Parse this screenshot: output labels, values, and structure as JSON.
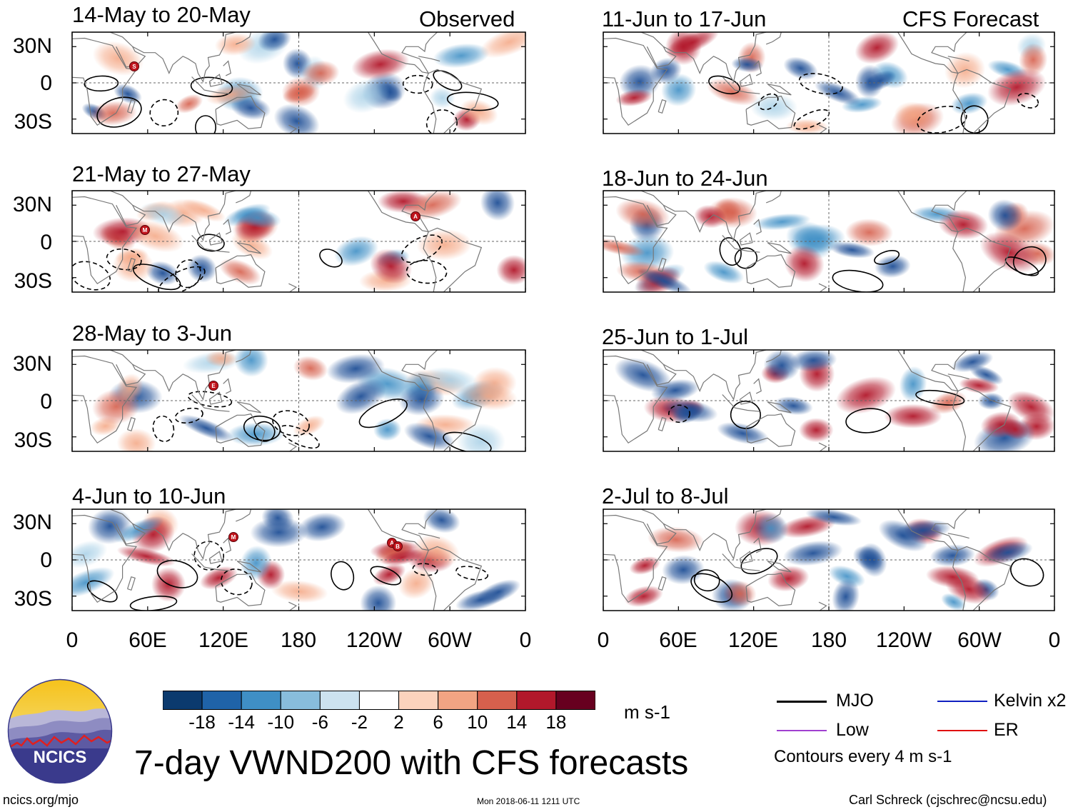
{
  "observed_panels": [
    {
      "period": "14-May to 20-May",
      "events": [
        "S"
      ]
    },
    {
      "period": "21-May to 27-May",
      "events": [
        "M",
        "A"
      ]
    },
    {
      "period": "28-May to 3-Jun",
      "events": [
        "E"
      ]
    },
    {
      "period": "4-Jun to 10-Jun",
      "events": [
        "M",
        "A",
        "B"
      ]
    }
  ],
  "forecast_panels": [
    {
      "period": "11-Jun to 17-Jun"
    },
    {
      "period": "18-Jun to 24-Jun"
    },
    {
      "period": "25-Jun to 1-Jul"
    },
    {
      "period": "2-Jul to 8-Jul"
    }
  ],
  "observed_label": "Observed",
  "forecast_label": "CFS Forecast",
  "lat_ticks": [
    "30N",
    "0",
    "30S"
  ],
  "lon_ticks": [
    "0",
    "60E",
    "120E",
    "180",
    "120W",
    "60W",
    "0"
  ],
  "colorbar": {
    "ticks": [
      "-18",
      "-14",
      "-10",
      "-6",
      "-2",
      "2",
      "6",
      "10",
      "14",
      "18"
    ],
    "colors": [
      "#0b3a6e",
      "#1f63a8",
      "#3f8fc5",
      "#88bddc",
      "#cce2ef",
      "#ffffff",
      "#fcd3bd",
      "#f2a483",
      "#d6604d",
      "#b2182b",
      "#67001f"
    ],
    "units": "m s-1"
  },
  "legend": {
    "mjo": "MJO",
    "kelvin": "Kelvin x2",
    "low": "Low",
    "er": "ER",
    "contours": "Contours every 4 m s-1",
    "colors": {
      "mjo": "#000000",
      "kelvin": "#1020c0",
      "low": "#a040d0",
      "er": "#e01010"
    }
  },
  "title": "7-day VWND200 with CFS forecasts",
  "logo_text": "NCICS",
  "url": "ncics.org/mjo",
  "timestamp": "Mon 2018-06-11 1211 UTC",
  "credit": "Carl Schreck (cjschrec@ncsu.edu)"
}
